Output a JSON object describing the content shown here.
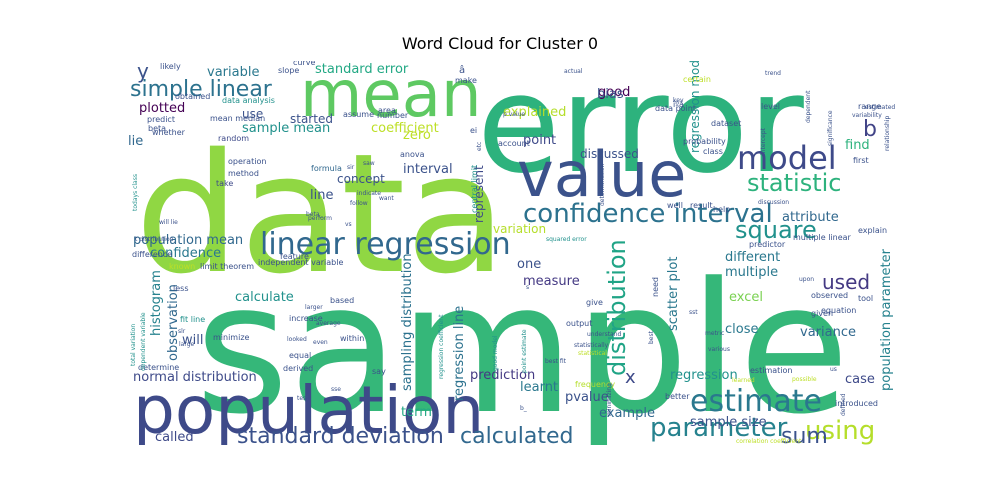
{
  "chart_data": {
    "type": "wordcloud",
    "title": "Word Cloud for Cluster 0",
    "colormap": "viridis",
    "words": [
      {
        "text": "sample",
        "weight": 1.0,
        "color": "#35b779"
      },
      {
        "text": "data",
        "weight": 0.95,
        "color": "#90d743"
      },
      {
        "text": "error",
        "weight": 0.9,
        "color": "#2db27d"
      },
      {
        "text": "population",
        "weight": 0.6,
        "color": "#3e4a89"
      },
      {
        "text": "mean",
        "weight": 0.45,
        "color": "#5ec962"
      },
      {
        "text": "value",
        "weight": 0.48,
        "color": "#3b528b"
      },
      {
        "text": "linear regression",
        "weight": 0.32,
        "color": "#31688e"
      },
      {
        "text": "model",
        "weight": 0.28,
        "color": "#3e4a89"
      },
      {
        "text": "confidence interval",
        "weight": 0.27,
        "color": "#2c728e"
      },
      {
        "text": "estimate",
        "weight": 0.27,
        "color": "#2a788e"
      },
      {
        "text": "standard deviation",
        "weight": 0.22,
        "color": "#3b528b"
      },
      {
        "text": "calculated",
        "weight": 0.22,
        "color": "#31688e"
      },
      {
        "text": "parameter",
        "weight": 0.22,
        "color": "#26828e"
      },
      {
        "text": "using",
        "weight": 0.22,
        "color": "#b5de2b"
      },
      {
        "text": "statistic",
        "weight": 0.22,
        "color": "#2db27d"
      },
      {
        "text": "square",
        "weight": 0.22,
        "color": "#21918c"
      },
      {
        "text": "distribution",
        "weight": 0.22,
        "color": "#20a486"
      },
      {
        "text": "simple linear",
        "weight": 0.2,
        "color": "#2c728e"
      },
      {
        "text": "sum",
        "weight": 0.2,
        "color": "#3b528b"
      },
      {
        "text": "used",
        "weight": 0.2,
        "color": "#443983"
      },
      {
        "text": "b",
        "weight": 0.2,
        "color": "#414487"
      },
      {
        "text": "x",
        "weight": 0.2,
        "color": "#3e4a89"
      },
      {
        "text": "y",
        "weight": 0.2,
        "color": "#3b528b"
      },
      {
        "text": "standard error",
        "weight": 0.11,
        "color": "#22a884"
      },
      {
        "text": "variable",
        "weight": 0.11,
        "color": "#2a788e"
      },
      {
        "text": "plotted",
        "weight": 0.11,
        "color": "#440154"
      },
      {
        "text": "sample mean",
        "weight": 0.11,
        "color": "#21918c"
      },
      {
        "text": "coefficient",
        "weight": 0.11,
        "color": "#bddf26"
      },
      {
        "text": "zero",
        "weight": 0.11,
        "color": "#bddf26"
      },
      {
        "text": "explained",
        "weight": 0.11,
        "color": "#b5de2b"
      },
      {
        "text": "good",
        "weight": 0.11,
        "color": "#440154"
      },
      {
        "text": "bias",
        "weight": 0.11,
        "color": "#3b528b"
      },
      {
        "text": "point",
        "weight": 0.11,
        "color": "#3e4a89"
      },
      {
        "text": "interval",
        "weight": 0.11,
        "color": "#3b528b"
      },
      {
        "text": "population mean",
        "weight": 0.11,
        "color": "#31688e"
      },
      {
        "text": "confidence",
        "weight": 0.11,
        "color": "#2a788e"
      },
      {
        "text": "histogram",
        "weight": 0.11,
        "color": "#26828e"
      },
      {
        "text": "calculate",
        "weight": 0.11,
        "color": "#21918c"
      },
      {
        "text": "observation",
        "weight": 0.11,
        "color": "#31688e"
      },
      {
        "text": "sampling distribution",
        "weight": 0.11,
        "color": "#2c728e"
      },
      {
        "text": "regression line",
        "weight": 0.11,
        "color": "#2c728e"
      },
      {
        "text": "scatter plot",
        "weight": 0.11,
        "color": "#2a788e"
      },
      {
        "text": "population parameter",
        "weight": 0.11,
        "color": "#26828e"
      },
      {
        "text": "normal distribution",
        "weight": 0.11,
        "color": "#3e4a89"
      },
      {
        "text": "variance",
        "weight": 0.11,
        "color": "#31688e"
      },
      {
        "text": "excel",
        "weight": 0.11,
        "color": "#7ad151"
      },
      {
        "text": "multiple",
        "weight": 0.11,
        "color": "#2a788e"
      },
      {
        "text": "close",
        "weight": 0.11,
        "color": "#2a788e"
      },
      {
        "text": "different",
        "weight": 0.11,
        "color": "#2a788e"
      },
      {
        "text": "regression",
        "weight": 0.11,
        "color": "#21918c"
      },
      {
        "text": "prediction",
        "weight": 0.11,
        "color": "#443983"
      },
      {
        "text": "learnt",
        "weight": 0.11,
        "color": "#2a788e"
      },
      {
        "text": "pvalue",
        "weight": 0.11,
        "color": "#3b528b"
      },
      {
        "text": "example",
        "weight": 0.11,
        "color": "#31688e"
      },
      {
        "text": "sample size",
        "weight": 0.11,
        "color": "#3b528b"
      },
      {
        "text": "case",
        "weight": 0.11,
        "color": "#3e4a89"
      },
      {
        "text": "called",
        "weight": 0.11,
        "color": "#3e4a89"
      },
      {
        "text": "term",
        "weight": 0.11,
        "color": "#22a884"
      },
      {
        "text": "one",
        "weight": 0.11,
        "color": "#3b528b"
      },
      {
        "text": "measure",
        "weight": 0.11,
        "color": "#443983"
      },
      {
        "text": "will",
        "weight": 0.11,
        "color": "#3b528b"
      },
      {
        "text": "line",
        "weight": 0.11,
        "color": "#3b528b"
      },
      {
        "text": "find",
        "weight": 0.11,
        "color": "#2db27d"
      },
      {
        "text": "attribute",
        "weight": 0.11,
        "color": "#31688e"
      },
      {
        "text": "regression model",
        "weight": 0.11,
        "color": "#21918c"
      },
      {
        "text": "started",
        "weight": 0.11,
        "color": "#3b528b"
      },
      {
        "text": "use",
        "weight": 0.11,
        "color": "#3b528b"
      },
      {
        "text": "variation",
        "weight": 0.11,
        "color": "#b5de2b"
      },
      {
        "text": "concept",
        "weight": 0.11,
        "color": "#3b528b"
      },
      {
        "text": "represent",
        "weight": 0.11,
        "color": "#3e4a89"
      },
      {
        "text": "discussed",
        "weight": 0.11,
        "color": "#3b528b"
      },
      {
        "text": "lie",
        "weight": 0.11,
        "color": "#31688e"
      },
      {
        "text": "mean median",
        "weight": 0.05,
        "color": "#3b528b"
      },
      {
        "text": "data analysis",
        "weight": 0.05,
        "color": "#21918c"
      },
      {
        "text": "predict",
        "weight": 0.05,
        "color": "#3b528b"
      },
      {
        "text": "beta",
        "weight": 0.05,
        "color": "#3b528b"
      },
      {
        "text": "random",
        "weight": 0.05,
        "color": "#3e4a89"
      },
      {
        "text": "operation",
        "weight": 0.05,
        "color": "#3b528b"
      },
      {
        "text": "method",
        "weight": 0.05,
        "color": "#3b528b"
      },
      {
        "text": "take",
        "weight": 0.05,
        "color": "#3e4a89"
      },
      {
        "text": "formula",
        "weight": 0.05,
        "color": "#31688e"
      },
      {
        "text": "slope",
        "weight": 0.05,
        "color": "#3b528b"
      },
      {
        "text": "curve",
        "weight": 0.05,
        "color": "#3b528b"
      },
      {
        "text": "area",
        "weight": 0.05,
        "color": "#3b528b"
      },
      {
        "text": "likely",
        "weight": 0.05,
        "color": "#3b528b"
      },
      {
        "text": "obtained",
        "weight": 0.05,
        "color": "#3b528b"
      },
      {
        "text": "whether",
        "weight": 0.05,
        "color": "#3b528b"
      },
      {
        "text": "assume",
        "weight": 0.05,
        "color": "#3b528b"
      },
      {
        "text": "number",
        "weight": 0.05,
        "color": "#3b528b"
      },
      {
        "text": "make",
        "weight": 0.05,
        "color": "#3b528b"
      },
      {
        "text": "anova",
        "weight": 0.05,
        "color": "#3b528b"
      },
      {
        "text": "account",
        "weight": 0.05,
        "color": "#3b528b"
      },
      {
        "text": "central limit",
        "weight": 0.05,
        "color": "#21918c"
      },
      {
        "text": "limit theorem",
        "weight": 0.05,
        "color": "#3b528b"
      },
      {
        "text": "feature",
        "weight": 0.05,
        "color": "#3b528b"
      },
      {
        "text": "independent variable",
        "weight": 0.05,
        "color": "#3b528b"
      },
      {
        "text": "difference",
        "weight": 0.05,
        "color": "#3b528b"
      },
      {
        "text": "known",
        "weight": 0.05,
        "color": "#bddf26"
      },
      {
        "text": "less",
        "weight": 0.05,
        "color": "#3b528b"
      },
      {
        "text": "increase",
        "weight": 0.05,
        "color": "#3b528b"
      },
      {
        "text": "based",
        "weight": 0.05,
        "color": "#3b528b"
      },
      {
        "text": "minimize",
        "weight": 0.05,
        "color": "#3b528b"
      },
      {
        "text": "fit line",
        "weight": 0.05,
        "color": "#21918c"
      },
      {
        "text": "equal",
        "weight": 0.05,
        "color": "#3b528b"
      },
      {
        "text": "derived",
        "weight": 0.05,
        "color": "#3b528b"
      },
      {
        "text": "within",
        "weight": 0.05,
        "color": "#3b528b"
      },
      {
        "text": "determine",
        "weight": 0.05,
        "color": "#3b528b"
      },
      {
        "text": "say",
        "weight": 0.05,
        "color": "#3b528b"
      },
      {
        "text": "output",
        "weight": 0.05,
        "color": "#3b528b"
      },
      {
        "text": "give",
        "weight": 0.05,
        "color": "#3b528b"
      },
      {
        "text": "need",
        "weight": 0.05,
        "color": "#3b528b"
      },
      {
        "text": "better",
        "weight": 0.05,
        "color": "#3b528b"
      },
      {
        "text": "frequency",
        "weight": 0.05,
        "color": "#b5de2b"
      },
      {
        "text": "tool",
        "weight": 0.05,
        "color": "#3b528b"
      },
      {
        "text": "given",
        "weight": 0.05,
        "color": "#3b528b"
      },
      {
        "text": "observed",
        "weight": 0.05,
        "color": "#3b528b"
      },
      {
        "text": "equation",
        "weight": 0.05,
        "color": "#3b528b"
      },
      {
        "text": "introduced",
        "weight": 0.05,
        "color": "#3b528b"
      },
      {
        "text": "estimation",
        "weight": 0.05,
        "color": "#3b528b"
      },
      {
        "text": "predictor",
        "weight": 0.05,
        "color": "#3b528b"
      },
      {
        "text": "multiple linear",
        "weight": 0.05,
        "color": "#3b528b"
      },
      {
        "text": "explain",
        "weight": 0.05,
        "color": "#3b528b"
      },
      {
        "text": "help",
        "weight": 0.05,
        "color": "#3b528b"
      },
      {
        "text": "well",
        "weight": 0.05,
        "color": "#3b528b"
      },
      {
        "text": "result",
        "weight": 0.05,
        "color": "#3b528b"
      },
      {
        "text": "probability",
        "weight": 0.05,
        "color": "#3b528b"
      },
      {
        "text": "dataset",
        "weight": 0.05,
        "color": "#3b528b"
      },
      {
        "text": "class",
        "weight": 0.05,
        "color": "#3b528b"
      },
      {
        "text": "level",
        "weight": 0.05,
        "color": "#3b528b"
      },
      {
        "text": "first",
        "weight": 0.05,
        "color": "#3b528b"
      },
      {
        "text": "range",
        "weight": 0.05,
        "color": "#3b528b"
      },
      {
        "text": "data point",
        "weight": 0.05,
        "color": "#3b528b"
      },
      {
        "text": "certain",
        "weight": 0.05,
        "color": "#bddf26"
      },
      {
        "text": "p value",
        "weight": 0.03,
        "color": "#3b528b"
      },
      {
        "text": "squared error",
        "weight": 0.03,
        "color": "#21918c"
      },
      {
        "text": "point estimate",
        "weight": 0.03,
        "color": "#21918c"
      },
      {
        "text": "regression coefficient",
        "weight": 0.03,
        "color": "#21918c"
      },
      {
        "text": "dependent variable",
        "weight": 0.03,
        "color": "#21918c"
      },
      {
        "text": "total variation",
        "weight": 0.03,
        "color": "#21918c"
      },
      {
        "text": "todays class",
        "weight": 0.03,
        "color": "#21918c"
      },
      {
        "text": "good model",
        "weight": 0.03,
        "color": "#21918c"
      },
      {
        "text": "correlation coefficient",
        "weight": 0.03,
        "color": "#bddf26"
      },
      {
        "text": "best fit",
        "weight": 0.03,
        "color": "#3b528b"
      },
      {
        "text": "sir",
        "weight": 0.03,
        "color": "#3b528b"
      },
      {
        "text": "follow",
        "weight": 0.03,
        "color": "#3b528b"
      },
      {
        "text": "indicate",
        "weight": 0.03,
        "color": "#3b528b"
      },
      {
        "text": "want",
        "weight": 0.03,
        "color": "#3b528b"
      },
      {
        "text": "perform",
        "weight": 0.03,
        "color": "#3b528b"
      },
      {
        "text": "slr",
        "weight": 0.03,
        "color": "#3b528b"
      },
      {
        "text": "looked",
        "weight": 0.03,
        "color": "#3b528b"
      },
      {
        "text": "sse",
        "weight": 0.03,
        "color": "#3b528b"
      },
      {
        "text": "test",
        "weight": 0.03,
        "color": "#3b528b"
      },
      {
        "text": "statistically",
        "weight": 0.03,
        "color": "#3b528b"
      },
      {
        "text": "understand",
        "weight": 0.03,
        "color": "#3b528b"
      },
      {
        "text": "minimizing",
        "weight": 0.03,
        "color": "#3b528b"
      },
      {
        "text": "statistical",
        "weight": 0.03,
        "color": "#bddf26"
      },
      {
        "text": "sst",
        "weight": 0.03,
        "color": "#3b528b"
      },
      {
        "text": "metric",
        "weight": 0.03,
        "color": "#3b528b"
      },
      {
        "text": "learned",
        "weight": 0.03,
        "color": "#bddf26"
      },
      {
        "text": "discussion",
        "weight": 0.03,
        "color": "#3b528b"
      },
      {
        "text": "intercept",
        "weight": 0.03,
        "color": "#3b528b"
      },
      {
        "text": "determination",
        "weight": 0.03,
        "color": "#3b528b"
      },
      {
        "text": "significance",
        "weight": 0.03,
        "color": "#3b528b"
      },
      {
        "text": "variability",
        "weight": 0.03,
        "color": "#3b528b"
      },
      {
        "text": "estimated",
        "weight": 0.03,
        "color": "#3b528b"
      },
      {
        "text": "relationship",
        "weight": 0.03,
        "color": "#3b528b"
      },
      {
        "text": "dependent",
        "weight": 0.03,
        "color": "#3b528b"
      },
      {
        "text": "trend",
        "weight": 0.03,
        "color": "#3b528b"
      },
      {
        "text": "actual",
        "weight": 0.03,
        "color": "#3b528b"
      },
      {
        "text": "key",
        "weight": 0.03,
        "color": "#3b528b"
      },
      {
        "text": "upon",
        "weight": 0.03,
        "color": "#3b528b"
      },
      {
        "text": "defined",
        "weight": 0.03,
        "color": "#3b528b"
      },
      {
        "text": "various",
        "weight": 0.03,
        "color": "#3b528b"
      },
      {
        "text": "larger",
        "weight": 0.03,
        "color": "#3b528b"
      },
      {
        "text": "average",
        "weight": 0.03,
        "color": "#3b528b"
      },
      {
        "text": "even",
        "weight": 0.03,
        "color": "#3b528b"
      },
      {
        "text": "large",
        "weight": 0.03,
        "color": "#3b528b"
      },
      {
        "text": "etc",
        "weight": 0.03,
        "color": "#3b528b"
      },
      {
        "text": "vs",
        "weight": 0.03,
        "color": "#3b528b"
      },
      {
        "text": "us",
        "weight": 0.03,
        "color": "#3b528b"
      },
      {
        "text": "best",
        "weight": 0.03,
        "color": "#3b528b"
      },
      {
        "text": "will lie",
        "weight": 0.03,
        "color": "#3b528b"
      },
      {
        "text": "t distribution",
        "weight": 0.03,
        "color": "#3b528b"
      },
      {
        "text": "possible",
        "weight": 0.03,
        "color": "#bddf26"
      },
      {
        "text": "beta_",
        "weight": 0.03,
        "color": "#3b528b"
      },
      {
        "text": "saw",
        "weight": 0.03,
        "color": "#3b528b"
      },
      {
        "text": "ei",
        "weight": 0.03,
        "color": "#3b528b"
      },
      {
        "text": "â",
        "weight": 0.03,
        "color": "#3b528b"
      },
      {
        "text": "îºâ",
        "weight": 0.03,
        "color": "#3b528b"
      },
      {
        "text": "b_",
        "weight": 0.03,
        "color": "#3b528b"
      },
      {
        "text": "s",
        "weight": 0.03,
        "color": "#3b528b"
      }
    ]
  }
}
